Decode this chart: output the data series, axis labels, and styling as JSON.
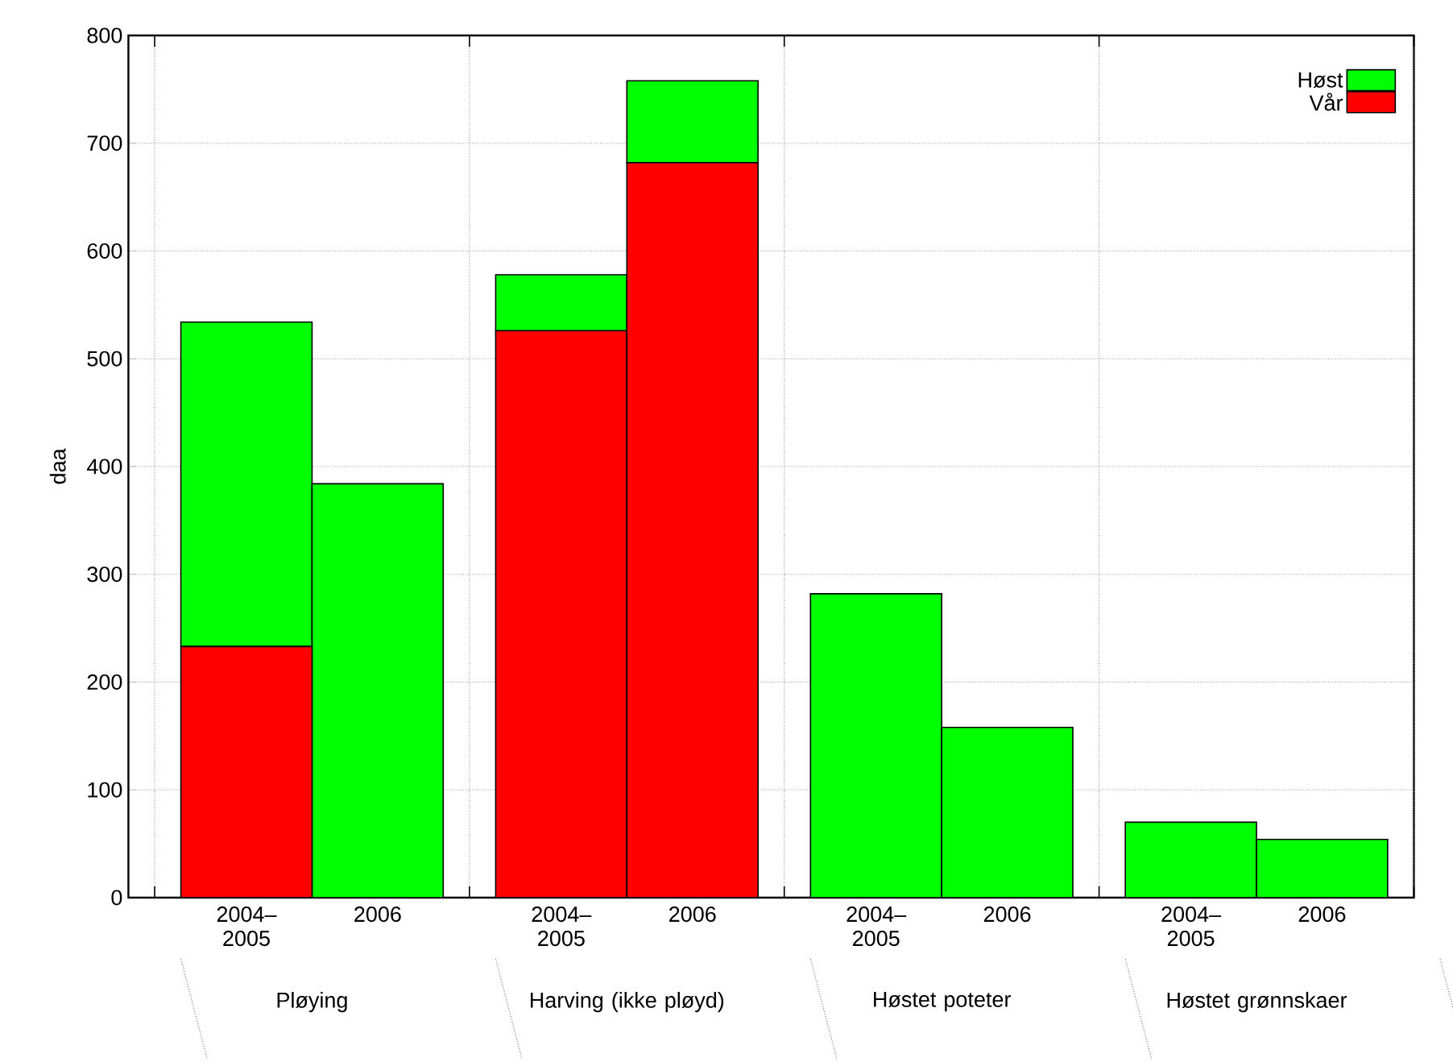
{
  "chart_data": {
    "type": "bar",
    "stacked": true,
    "ylabel": "daa",
    "categories": [
      "2004–2005",
      "2006",
      "2004–2005",
      "2006",
      "2004–2005",
      "2006",
      "2004–2005",
      "2006"
    ],
    "series": [
      {
        "name": "Vår",
        "color": "#ff0000",
        "values": [
          233,
          0,
          526,
          682,
          0,
          0,
          0,
          0
        ]
      },
      {
        "name": "Høst",
        "color": "#00ff00",
        "values": [
          301,
          384,
          52,
          76,
          282,
          158,
          70,
          54
        ]
      }
    ],
    "annotations": [
      "Pløying",
      "Harving (ikke pløyd)",
      "Høstet poteter",
      "Høstet grønnskaer"
    ],
    "ylim": [
      0,
      800
    ],
    "yticks": [
      0,
      100,
      200,
      300,
      400,
      500,
      600,
      700,
      800
    ],
    "grid": true,
    "legend": "top right"
  }
}
